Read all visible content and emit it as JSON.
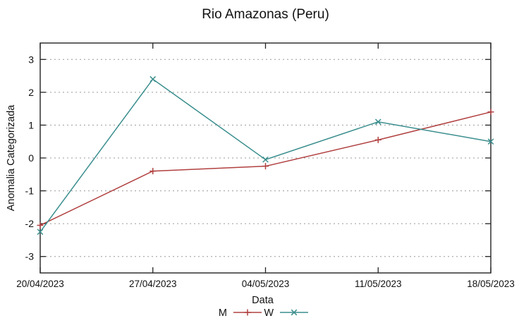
{
  "chart_data": {
    "type": "line",
    "title": "Rio Amazonas (Peru)",
    "xlabel": "Data",
    "ylabel": "Anomalia Categorizada",
    "categories": [
      "20/04/2023",
      "27/04/2023",
      "04/05/2023",
      "11/05/2023",
      "18/05/2023"
    ],
    "series": [
      {
        "name": "M",
        "marker": "plus",
        "color": "#b14040",
        "values": [
          -2.05,
          -0.4,
          -0.25,
          0.55,
          1.4
        ]
      },
      {
        "name": "W",
        "marker": "cross",
        "color": "#3b8e8e",
        "values": [
          -2.25,
          2.4,
          -0.05,
          1.1,
          0.5
        ]
      }
    ],
    "ylim": [
      -3.5,
      3.5
    ],
    "yticks": [
      -3,
      -2,
      -1,
      0,
      1,
      2,
      3
    ],
    "grid": "horizontal-dotted",
    "grid_color": "#999999",
    "axis_color": "#222222",
    "text_color": "#111111",
    "background": "#ffffff",
    "legend_position": "bottom-center"
  }
}
